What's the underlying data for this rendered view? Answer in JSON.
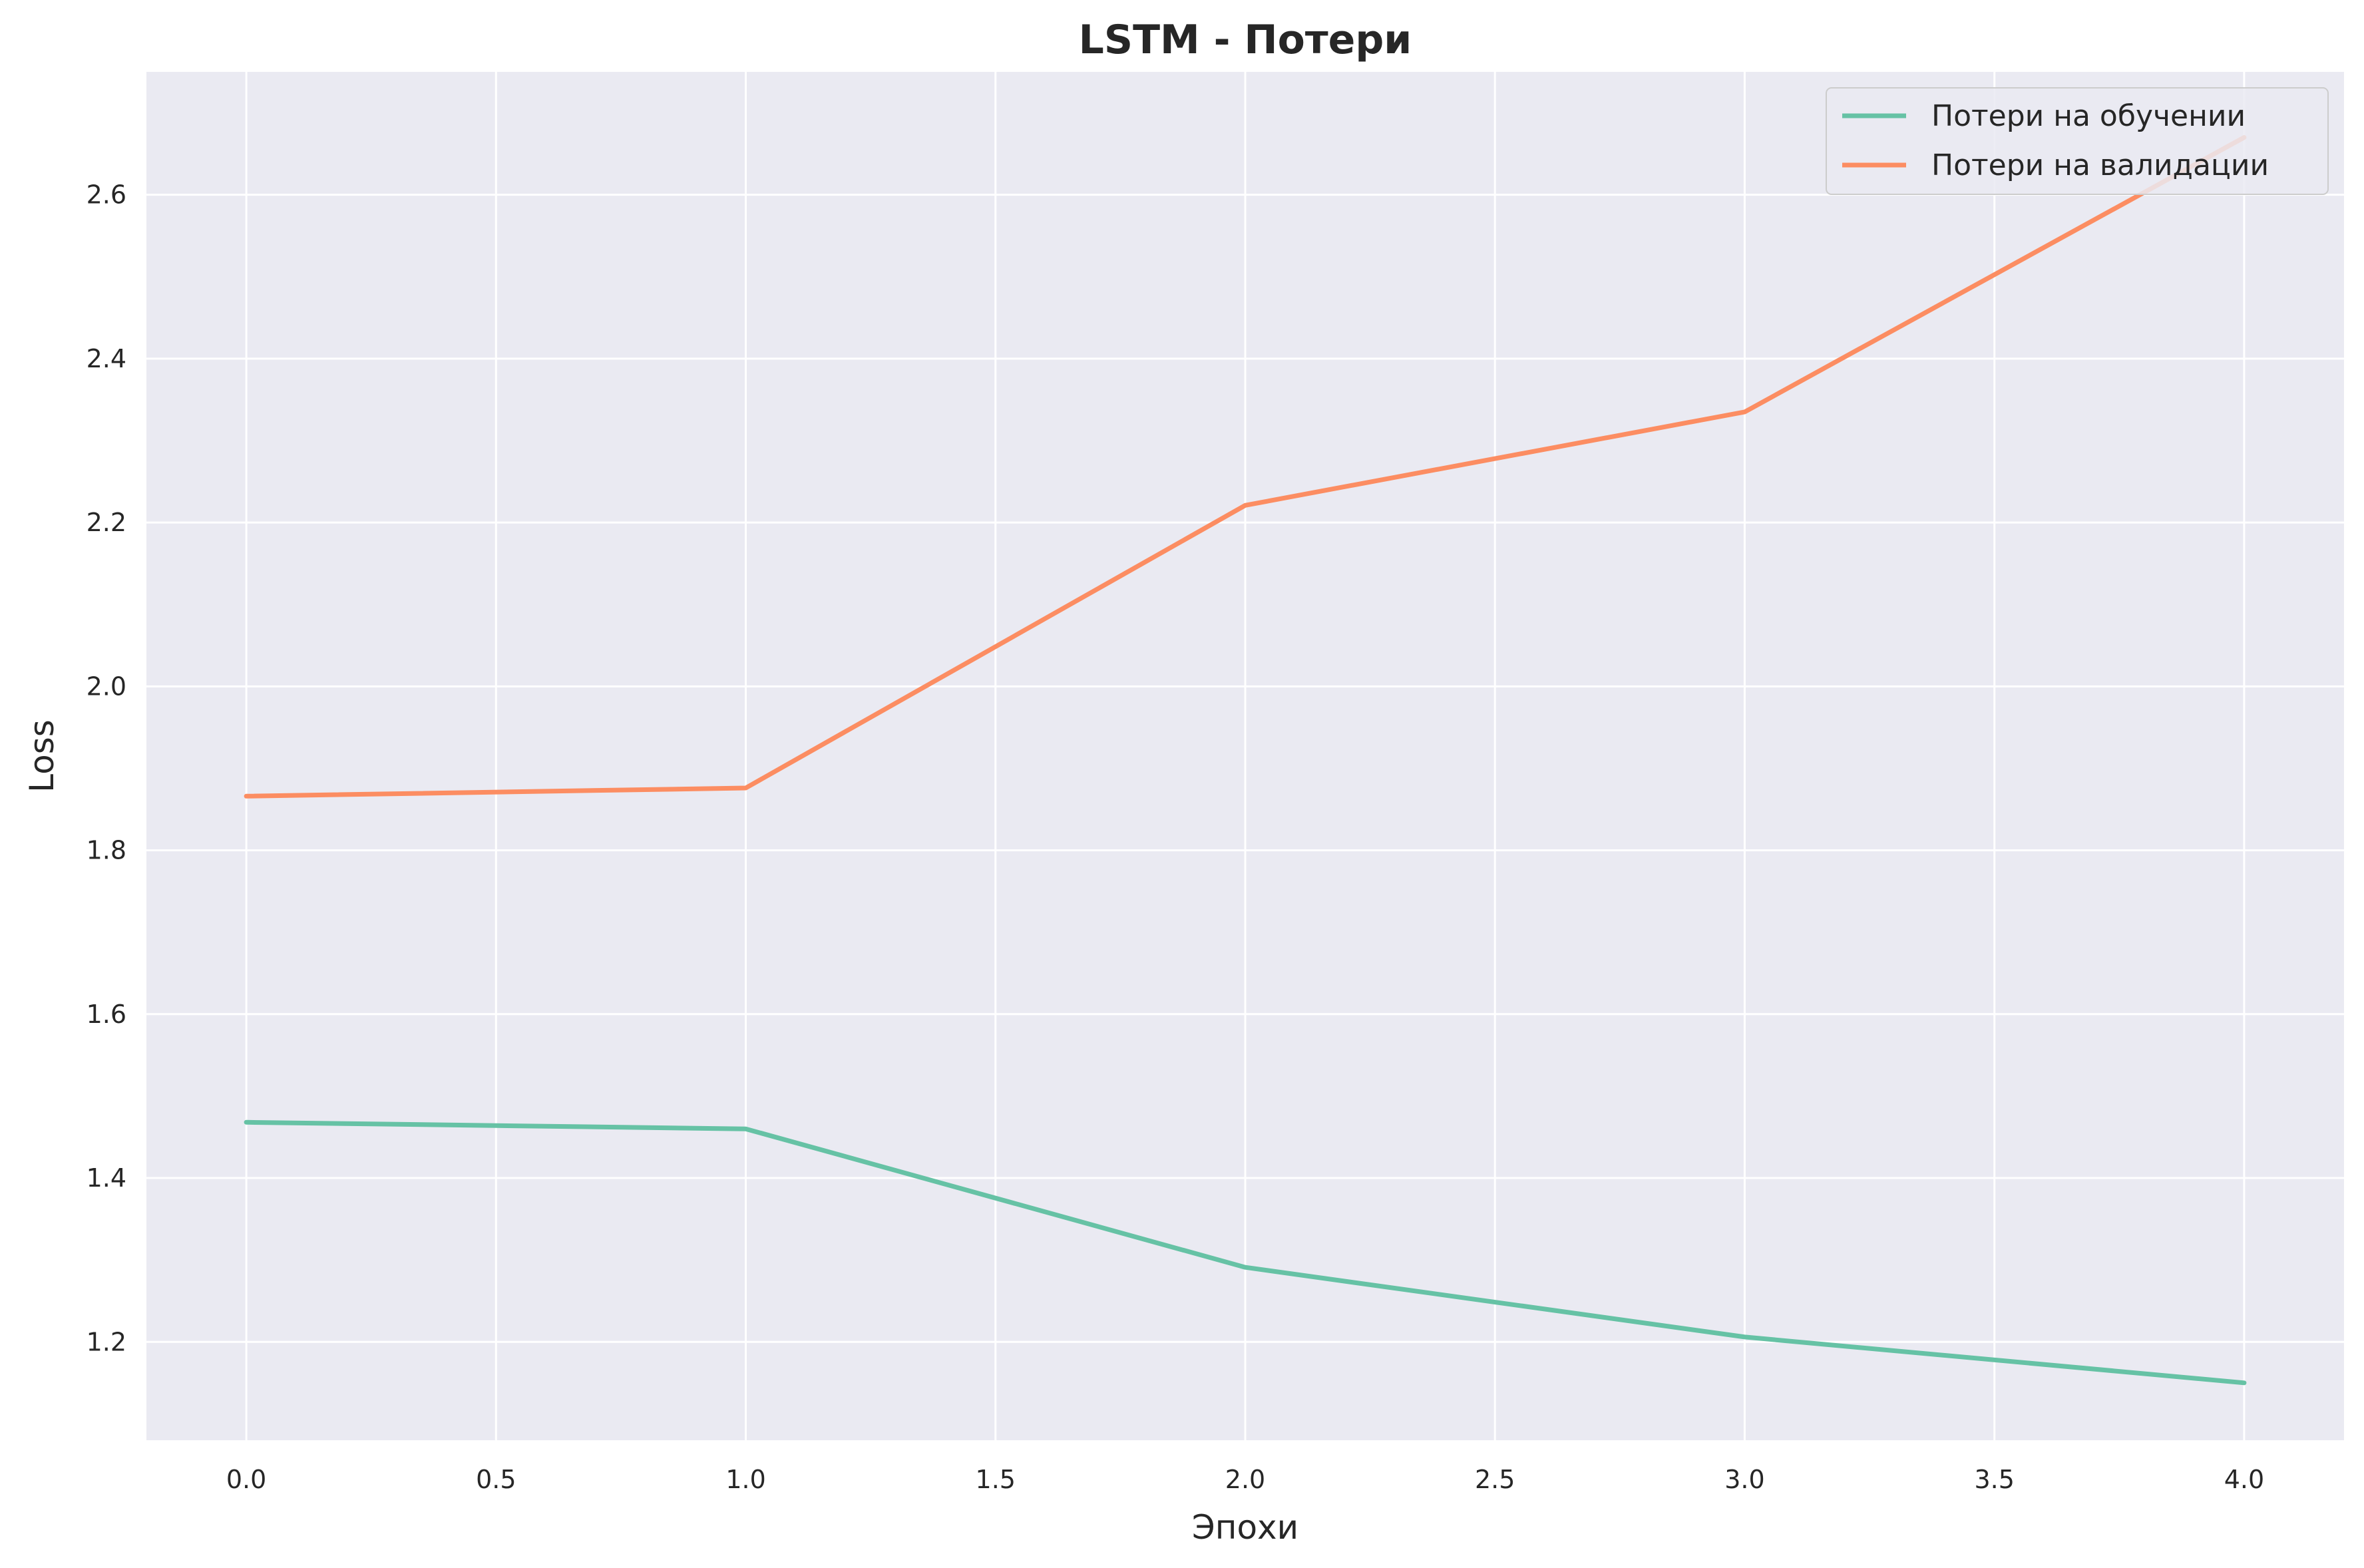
{
  "chart_data": {
    "type": "line",
    "title": "LSTM - Потери",
    "xlabel": "Эпохи",
    "ylabel": "Loss",
    "x": [
      0,
      1,
      2,
      3,
      4
    ],
    "xlim": [
      -0.2,
      4.2
    ],
    "ylim": [
      1.08,
      2.75
    ],
    "xticks": [
      0.0,
      0.5,
      1.0,
      1.5,
      2.0,
      2.5,
      3.0,
      3.5,
      4.0
    ],
    "xtick_labels": [
      "0.0",
      "0.5",
      "1.0",
      "1.5",
      "2.0",
      "2.5",
      "3.0",
      "3.5",
      "4.0"
    ],
    "yticks": [
      1.2,
      1.4,
      1.6,
      1.8,
      2.0,
      2.2,
      2.4,
      2.6
    ],
    "ytick_labels": [
      "1.2",
      "1.4",
      "1.6",
      "1.8",
      "2.0",
      "2.2",
      "2.4",
      "2.6"
    ],
    "grid": true,
    "legend_position": "top-right",
    "background_color": "#eaeaf2",
    "grid_color": "#ffffff",
    "series": [
      {
        "name": "Потери на обучении",
        "color": "#66c2a5",
        "values": [
          1.468,
          1.46,
          1.291,
          1.206,
          1.15
        ]
      },
      {
        "name": "Потери на валидации",
        "color": "#fc8d62",
        "values": [
          1.866,
          1.876,
          2.221,
          2.335,
          2.67
        ]
      }
    ]
  }
}
